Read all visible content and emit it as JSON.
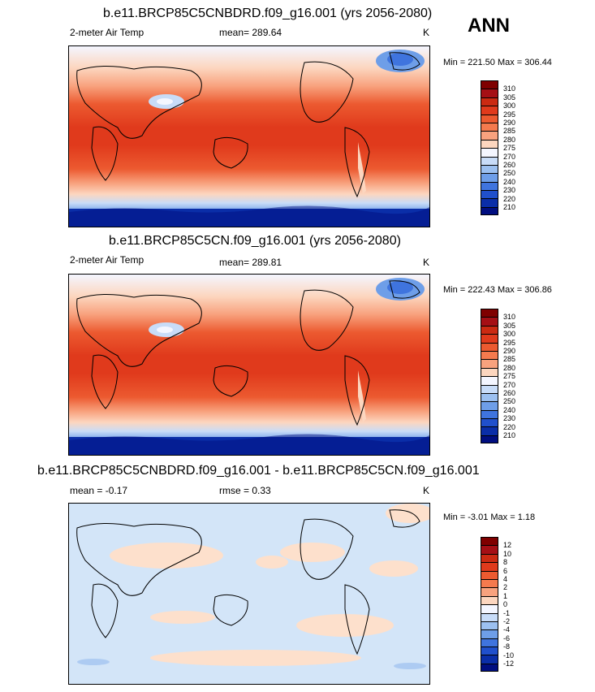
{
  "season_label": "ANN",
  "panels": [
    {
      "title": "b.e11.BRCP85C5CNBDRD.f09_g16.001 (yrs 2056-2080)",
      "variable": "2-meter Air Temp",
      "stat_text": "mean= 289.64",
      "unit": "K",
      "minmax": "Min = 221.50 Max = 306.44",
      "colorbar_labels": [
        "310",
        "305",
        "300",
        "295",
        "290",
        "285",
        "280",
        "275",
        "270",
        "260",
        "250",
        "240",
        "230",
        "220",
        "210"
      ]
    },
    {
      "title": "b.e11.BRCP85C5CN.f09_g16.001 (yrs 2056-2080)",
      "variable": "2-meter Air Temp",
      "stat_text": "mean= 289.81",
      "unit": "K",
      "minmax": "Min = 222.43 Max = 306.86",
      "colorbar_labels": [
        "310",
        "305",
        "300",
        "295",
        "290",
        "285",
        "280",
        "275",
        "270",
        "260",
        "250",
        "240",
        "230",
        "220",
        "210"
      ]
    },
    {
      "title": "b.e11.BRCP85C5CNBDRD.f09_g16.001 - b.e11.BRCP85C5CN.f09_g16.001",
      "stat_text": "mean =  -0.17",
      "rmse_text": "rmse =   0.33",
      "unit": "K",
      "minmax": "Min =  -3.01 Max =   1.18",
      "colorbar_labels": [
        "12",
        "10",
        "8",
        "6",
        "4",
        "2",
        "1",
        "0",
        "-1",
        "-2",
        "-4",
        "-6",
        "-8",
        "-10",
        "-12"
      ]
    }
  ],
  "colors": {
    "temp_scale": [
      "#7f0000",
      "#a50f15",
      "#cb2a12",
      "#e03a1c",
      "#ec5a30",
      "#f47a4e",
      "#f8a27e",
      "#fcd6bf",
      "#f4f6ff",
      "#c8dcf8",
      "#9cc0f0",
      "#6e9ee8",
      "#3f74de",
      "#2050cc",
      "#0a2ea8",
      "#000e80"
    ],
    "diff_scale": [
      "#7f0000",
      "#a50f15",
      "#cb2a12",
      "#e03a1c",
      "#ec5a30",
      "#f47a4e",
      "#f8a27e",
      "#fcd6bf",
      "#f4f6ff",
      "#c8dcf8",
      "#9cc0f0",
      "#6e9ee8",
      "#3f74de",
      "#2050cc",
      "#0a2ea8",
      "#000e80"
    ],
    "diff_background": "#d3e5f8",
    "diff_warm": "#fde0cc"
  }
}
